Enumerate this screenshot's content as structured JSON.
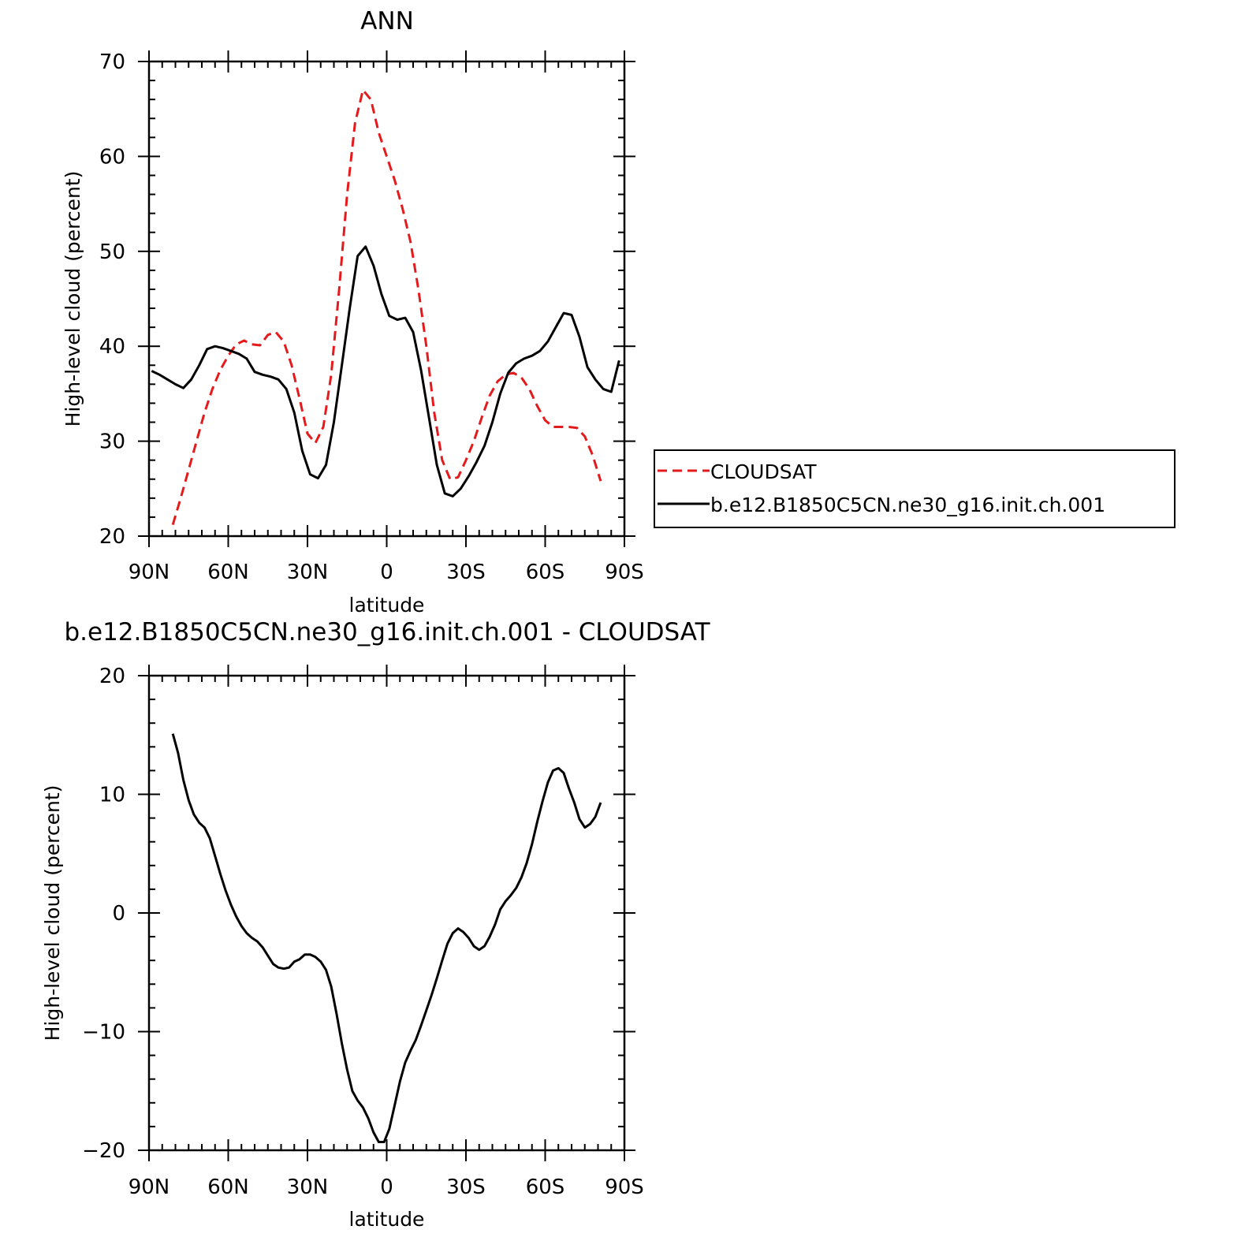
{
  "chart_data": [
    {
      "type": "line",
      "title": "ANN",
      "xlabel": "latitude",
      "ylabel": "High-level cloud (percent)",
      "xlim": [
        90,
        -90
      ],
      "ylim": [
        20,
        70
      ],
      "xticks": [
        90,
        60,
        30,
        0,
        -30,
        -60,
        -90
      ],
      "xtick_labels": [
        "90N",
        "60N",
        "30N",
        "0",
        "30S",
        "60S",
        "90S"
      ],
      "yticks": [
        20,
        30,
        40,
        50,
        60,
        70
      ],
      "ytick_labels": [
        "20",
        "30",
        "40",
        "50",
        "60",
        "70"
      ],
      "legend_position": "right",
      "series": [
        {
          "name": "CLOUDSAT",
          "color": "#e41a1c",
          "dash": "dashed",
          "x": [
            81,
            78,
            75,
            72,
            69,
            66,
            63,
            60,
            57,
            54,
            51,
            48,
            45,
            42,
            39,
            36,
            33,
            30,
            27,
            24,
            21,
            18,
            15,
            12,
            9,
            6,
            3,
            0,
            -3,
            -6,
            -9,
            -12,
            -15,
            -18,
            -21,
            -24,
            -27,
            -30,
            -33,
            -36,
            -39,
            -42,
            -45,
            -48,
            -51,
            -54,
            -57,
            -60,
            -63,
            -66,
            -69,
            -72,
            -75,
            -78,
            -81
          ],
          "y": [
            21.2,
            24,
            27,
            30,
            33,
            35.5,
            37.5,
            39,
            40.2,
            40.6,
            40.2,
            40.1,
            41.2,
            41.5,
            40.5,
            38,
            34.5,
            30.8,
            29.8,
            31.5,
            37,
            46,
            56,
            63.5,
            67,
            66,
            62.5,
            60,
            57.5,
            54.5,
            51,
            46,
            40,
            33,
            28,
            26,
            26.2,
            28,
            30,
            32.5,
            34.8,
            36.3,
            37,
            37.2,
            36.7,
            35.5,
            33.7,
            32.2,
            31.5,
            31.5,
            31.5,
            31.4,
            30.5,
            28.5,
            25.8
          ]
        },
        {
          "name": "b.e12.B1850C5CN.ne30_g16.init.ch.001",
          "color": "#000000",
          "dash": "solid",
          "x": [
            89,
            86,
            83,
            80,
            77,
            74,
            71,
            68,
            65,
            62,
            59,
            56,
            53,
            50,
            47,
            44,
            41,
            38,
            35,
            32,
            29,
            26,
            23,
            20,
            17,
            14,
            11,
            8,
            5,
            2,
            -1,
            -4,
            -7,
            -10,
            -13,
            -16,
            -19,
            -22,
            -25,
            -28,
            -31,
            -34,
            -37,
            -40,
            -43,
            -46,
            -49,
            -52,
            -55,
            -58,
            -61,
            -64,
            -67,
            -70,
            -73,
            -76,
            -79,
            -82,
            -85,
            -88
          ],
          "y": [
            37.4,
            37,
            36.5,
            36,
            35.6,
            36.5,
            38,
            39.7,
            40,
            39.8,
            39.5,
            39.2,
            38.7,
            37.3,
            37.0,
            36.8,
            36.5,
            35.5,
            33,
            29,
            26.5,
            26.1,
            27.5,
            32,
            38,
            44,
            49.5,
            50.5,
            48.5,
            45.5,
            43.2,
            42.8,
            43,
            41.5,
            37.5,
            32.5,
            27.5,
            24.5,
            24.2,
            25,
            26.3,
            27.8,
            29.5,
            32,
            35,
            37.2,
            38.2,
            38.7,
            39,
            39.5,
            40.5,
            42,
            43.5,
            43.3,
            41,
            37.8,
            36.5,
            35.5,
            35.2,
            38.5
          ]
        }
      ]
    },
    {
      "type": "line",
      "title": "b.e12.B1850C5CN.ne30_g16.init.ch.001 - CLOUDSAT",
      "xlabel": "latitude",
      "ylabel": "High-level cloud (percent)",
      "xlim": [
        90,
        -90
      ],
      "ylim": [
        -20,
        20
      ],
      "xticks": [
        90,
        60,
        30,
        0,
        -30,
        -60,
        -90
      ],
      "xtick_labels": [
        "90N",
        "60N",
        "30N",
        "0",
        "30S",
        "60S",
        "90S"
      ],
      "yticks": [
        -20,
        -10,
        0,
        10,
        20
      ],
      "ytick_labels": [
        "−20",
        "−10",
        "0",
        "10",
        "20"
      ],
      "series": [
        {
          "color": "#000000",
          "dash": "solid",
          "x": [
            81,
            79,
            77,
            75,
            73,
            71,
            69,
            67,
            65,
            63,
            61,
            59,
            57,
            55,
            53,
            51,
            49,
            47,
            45,
            43,
            41,
            39,
            37,
            35,
            33,
            31,
            29,
            27,
            25,
            23,
            21,
            19,
            17,
            15,
            13,
            11,
            9,
            7,
            5,
            3,
            1,
            -1,
            -3,
            -5,
            -7,
            -9,
            -11,
            -13,
            -15,
            -17,
            -19,
            -21,
            -23,
            -25,
            -27,
            -29,
            -31,
            -33,
            -35,
            -37,
            -39,
            -41,
            -43,
            -45,
            -47,
            -49,
            -51,
            -53,
            -55,
            -57,
            -59,
            -61,
            -63,
            -65,
            -67,
            -69,
            -71,
            -73,
            -75,
            -77,
            -79,
            -81
          ],
          "y": [
            15.1,
            13.5,
            11.2,
            9.5,
            8.3,
            7.6,
            7.2,
            6.3,
            4.8,
            3.3,
            1.9,
            0.7,
            -0.3,
            -1.1,
            -1.7,
            -2.1,
            -2.4,
            -2.9,
            -3.6,
            -4.3,
            -4.6,
            -4.7,
            -4.6,
            -4.1,
            -3.9,
            -3.5,
            -3.5,
            -3.7,
            -4.1,
            -4.8,
            -6.2,
            -8.5,
            -11,
            -13.2,
            -15,
            -15.8,
            -16.4,
            -17.3,
            -18.5,
            -19.3,
            -19.3,
            -18.2,
            -16.2,
            -14.2,
            -12.6,
            -11.6,
            -10.7,
            -9.5,
            -8.2,
            -6.9,
            -5.5,
            -4.0,
            -2.6,
            -1.7,
            -1.3,
            -1.6,
            -2.1,
            -2.8,
            -3.1,
            -2.8,
            -2.0,
            -1.0,
            0.3,
            1.0,
            1.5,
            2.1,
            3.0,
            4.2,
            5.8,
            7.7,
            9.4,
            11.0,
            12.0,
            12.2,
            11.8,
            10.5,
            9.3,
            7.9,
            7.2,
            7.5,
            8.1,
            9.3
          ]
        }
      ]
    }
  ]
}
